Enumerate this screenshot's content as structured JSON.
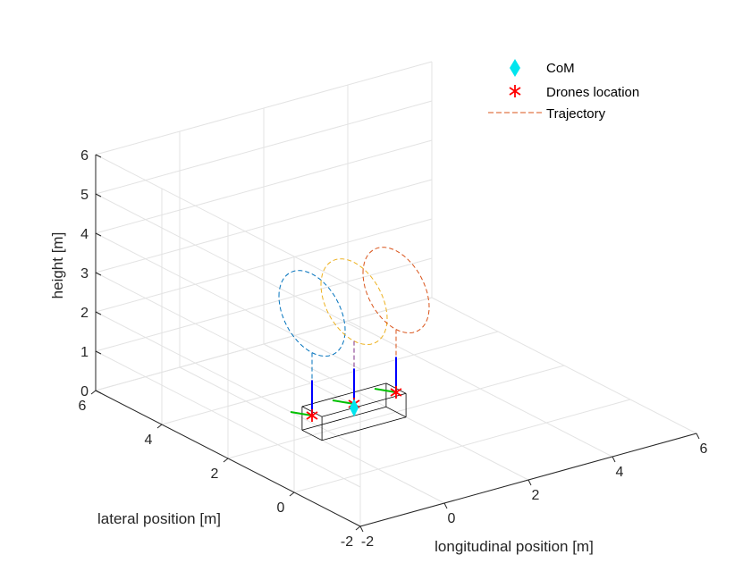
{
  "chart_data": {
    "type": "line3d",
    "xlabel": "longitudinal position [m]",
    "ylabel": "lateral position [m]",
    "zlabel": "height [m]",
    "xlim": [
      -2,
      6
    ],
    "ylim": [
      -2,
      6
    ],
    "zlim": [
      0,
      6
    ],
    "xticks": [
      "-2",
      "0",
      "2",
      "4",
      "6"
    ],
    "yticks": [
      "-2",
      "0",
      "2",
      "4",
      "6"
    ],
    "zticks": [
      "0",
      "1",
      "2",
      "3",
      "4",
      "5",
      "6"
    ],
    "grid": true,
    "legend_position": "top-right",
    "legend": [
      "CoM",
      "Drones location",
      "Trajectory"
    ],
    "colors": {
      "com": "#00e5ee",
      "drone": "#ff0000",
      "trajectory_1": "#0072bd",
      "trajectory_2": "#d95319",
      "trajectory_3": "#7e2f8e",
      "trajectory_4": "#edb120",
      "tether": "#0000ff",
      "arm": "#00c000",
      "payload": "#000000"
    },
    "payload": {
      "x": [
        0,
        2
      ],
      "y": [
        1.7,
        2.3
      ],
      "z": [
        0,
        0.6
      ]
    },
    "drones": [
      {
        "x": 0,
        "y": 2,
        "z": 0.5
      },
      {
        "x": 1,
        "y": 2,
        "z": 0.5
      },
      {
        "x": 2,
        "y": 2,
        "z": 0.5
      }
    ],
    "com": {
      "x": 1,
      "y": 2,
      "z": 0.4
    },
    "trajectories": [
      {
        "center": [
          0,
          2,
          3.1
        ],
        "radius": 1,
        "plane": "yz",
        "color": "#0072bd"
      },
      {
        "center": [
          1,
          2,
          3.1
        ],
        "radius": 1,
        "plane": "yz",
        "color": "#edb120"
      },
      {
        "center": [
          2,
          2,
          3.1
        ],
        "radius": 1,
        "plane": "yz",
        "color": "#d95319"
      }
    ]
  }
}
